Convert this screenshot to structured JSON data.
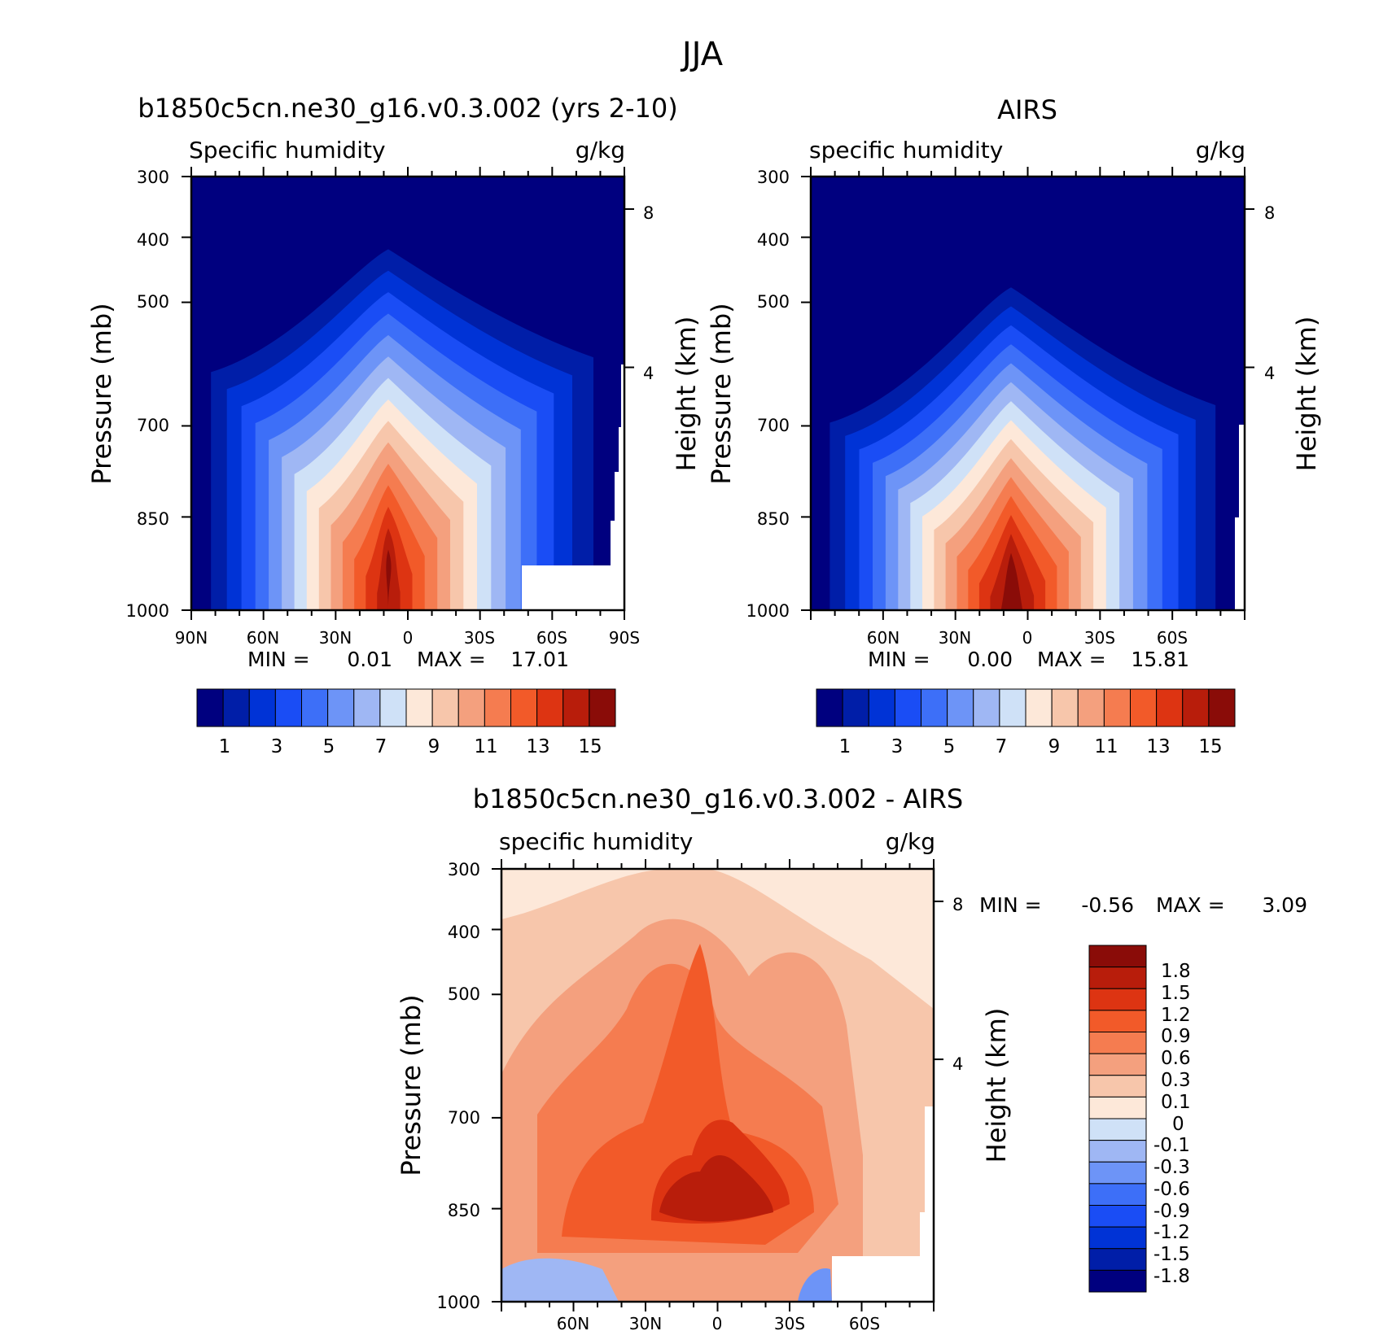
{
  "page_title": "JJA",
  "colors": {
    "abs_scale": [
      "#00007f",
      "#001ea8",
      "#0033d6",
      "#1a4df5",
      "#3d6ff8",
      "#6d94f7",
      "#9fb7f4",
      "#cfe1f7",
      "#fde8d9",
      "#f7c6ab",
      "#f4a07e",
      "#f57c50",
      "#f25a29",
      "#dd3412",
      "#b81d0b",
      "#8a0c08"
    ],
    "diff_scale": [
      "#00007f",
      "#001ea8",
      "#0033d6",
      "#1a4df5",
      "#3d6ff8",
      "#6d94f7",
      "#9fb7f4",
      "#cfe1f7",
      "#fde8d9",
      "#f7c6ab",
      "#f4a07e",
      "#f57c50",
      "#f25a29",
      "#dd3412",
      "#b81d0b",
      "#8a0c08"
    ],
    "missing": "#ffffff"
  },
  "chart_data": [
    {
      "id": "model",
      "type": "heatmap",
      "title": "b1850c5cn.ne30_g16.v0.3.002 (yrs 2-10)",
      "left_label": "Specific humidity",
      "right_label": "g/kg",
      "ylabel": "Pressure (mb)",
      "y2label": "Height (km)",
      "x_ticks": [
        "90N",
        "60N",
        "30N",
        "0",
        "30S",
        "60S",
        "90S"
      ],
      "y_ticks": [
        "300",
        "400",
        "500",
        "700",
        "850",
        "1000"
      ],
      "y2_ticks": [
        "8",
        "4"
      ],
      "ylim": [
        1000,
        300
      ],
      "xlim": [
        90,
        -90
      ],
      "min_label": "MIN =",
      "min_value": "0.01",
      "max_label": "MAX =",
      "max_value": "17.01",
      "colorbar_labels": [
        "1",
        "3",
        "5",
        "7",
        "9",
        "11",
        "13",
        "15"
      ],
      "peak_value": 17.0,
      "peak_lat": 8,
      "levels": [
        1,
        2,
        3,
        4,
        5,
        6,
        7,
        8,
        9,
        10,
        11,
        12,
        13,
        14,
        15
      ]
    },
    {
      "id": "obs",
      "type": "heatmap",
      "title": "AIRS",
      "left_label": "specific humidity",
      "right_label": "g/kg",
      "ylabel": "Pressure (mb)",
      "y2label": "Height (km)",
      "x_ticks": [
        "60N",
        "30N",
        "0",
        "30S",
        "60S"
      ],
      "y_ticks": [
        "300",
        "400",
        "500",
        "700",
        "850",
        "1000"
      ],
      "y2_ticks": [
        "8",
        "4"
      ],
      "ylim": [
        1000,
        300
      ],
      "xlim": [
        90,
        -90
      ],
      "min_label": "MIN =",
      "min_value": "0.00",
      "max_label": "MAX =",
      "max_value": "15.81",
      "colorbar_labels": [
        "1",
        "3",
        "5",
        "7",
        "9",
        "11",
        "13",
        "15"
      ],
      "peak_value": 15.8,
      "peak_lat": 8,
      "levels": [
        1,
        2,
        3,
        4,
        5,
        6,
        7,
        8,
        9,
        10,
        11,
        12,
        13,
        14,
        15
      ]
    },
    {
      "id": "diff",
      "type": "heatmap",
      "title": "b1850c5cn.ne30_g16.v0.3.002 - AIRS",
      "left_label": "specific humidity",
      "right_label": "g/kg",
      "ylabel": "Pressure (mb)",
      "y2label": "Height (km)",
      "x_ticks": [
        "60N",
        "30N",
        "0",
        "30S",
        "60S"
      ],
      "y_ticks": [
        "300",
        "400",
        "500",
        "700",
        "850",
        "1000"
      ],
      "y2_ticks": [
        "8",
        "4"
      ],
      "ylim": [
        1000,
        300
      ],
      "xlim": [
        90,
        -90
      ],
      "min_label": "MIN =",
      "min_value": "-0.56",
      "max_label": "MAX =",
      "max_value": "3.09",
      "colorbar_labels": [
        "1.8",
        "1.5",
        "1.2",
        "0.9",
        "0.6",
        "0.3",
        "0.1",
        "0",
        "-0.1",
        "-0.3",
        "-0.6",
        "-0.9",
        "-1.2",
        "-1.5",
        "-1.8"
      ],
      "levels": [
        -1.8,
        -1.5,
        -1.2,
        -0.9,
        -0.6,
        -0.3,
        -0.1,
        0,
        0.1,
        0.3,
        0.6,
        0.9,
        1.2,
        1.5,
        1.8
      ]
    }
  ]
}
